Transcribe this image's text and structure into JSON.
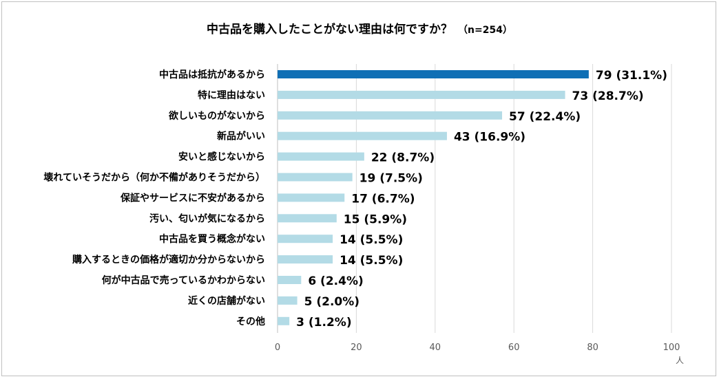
{
  "chart_data": {
    "type": "bar",
    "orientation": "horizontal",
    "title": "中古品を購入したことがない理由は何ですか？",
    "sample_note": "（n=254）",
    "unit": "人",
    "xlim": [
      0,
      100
    ],
    "xticks": [
      0,
      20,
      40,
      60,
      80,
      100
    ],
    "grid": true,
    "highlight_color": "#0f6fb5",
    "bar_color": "#b3dbe6",
    "categories": [
      "中古品は抵抗があるから",
      "特に理由はない",
      "欲しいものがないから",
      "新品がいい",
      "安いと感じないから",
      "壊れていそうだから（何か不備がありそうだから）",
      "保証やサービスに不安があるから",
      "汚い、匂いが気になるから",
      "中古品を買う概念がない",
      "購入するときの価格が適切か分からないから",
      "何が中古品で売っているかわからない",
      "近くの店舗がない",
      "その他"
    ],
    "values": [
      79,
      73,
      57,
      43,
      22,
      19,
      17,
      15,
      14,
      14,
      6,
      5,
      3
    ],
    "value_labels": [
      "79 (31.1%)",
      "73 (28.7%)",
      "57 (22.4%)",
      "43 (16.9%)",
      "22 (8.7%)",
      "19 (7.5%)",
      "17 (6.7%)",
      "15 (5.9%)",
      "14 (5.5%)",
      "14 (5.5%)",
      "6 (2.4%)",
      "5 (2.0%)",
      "3 (1.2%)"
    ],
    "highlight_index": 0
  }
}
